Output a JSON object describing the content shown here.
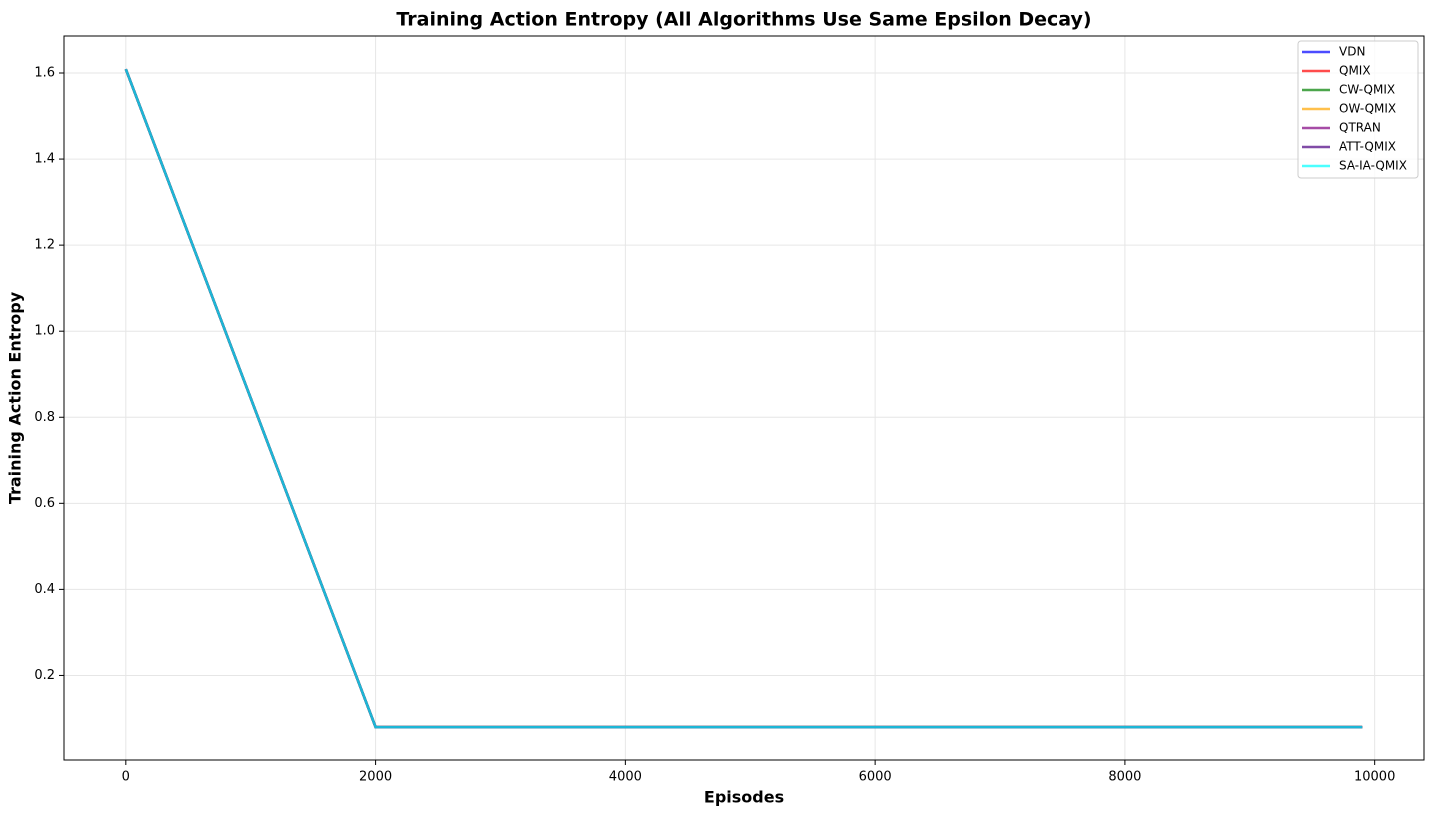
{
  "chart_data": {
    "type": "line",
    "title": "Training Action Entropy (All Algorithms Use Same Epsilon Decay)",
    "x_label": "Episodes",
    "y_label": "Training Action Entropy",
    "x": [
      0,
      2000,
      9900
    ],
    "series": [
      {
        "name": "VDN",
        "color": "#0000ff",
        "values": [
          1.609,
          0.08,
          0.08
        ]
      },
      {
        "name": "QMIX",
        "color": "#ff0000",
        "values": [
          1.609,
          0.08,
          0.08
        ]
      },
      {
        "name": "CW-QMIX",
        "color": "#008000",
        "values": [
          1.609,
          0.08,
          0.08
        ]
      },
      {
        "name": "OW-QMIX",
        "color": "#ffa500",
        "values": [
          1.609,
          0.08,
          0.08
        ]
      },
      {
        "name": "QTRAN",
        "color": "#800080",
        "values": [
          1.609,
          0.08,
          0.08
        ]
      },
      {
        "name": "ATT-QMIX",
        "color": "#4b0082",
        "values": [
          1.609,
          0.08,
          0.08
        ]
      },
      {
        "name": "SA-IA-QMIX",
        "color": "#00ffff",
        "values": [
          1.609,
          0.08,
          0.08
        ]
      }
    ],
    "xlim": [
      -495,
      10395
    ],
    "ylim": [
      0.0035,
      1.686
    ],
    "xticks": [
      0,
      2000,
      4000,
      6000,
      8000,
      10000
    ],
    "yticks": [
      0.2,
      0.4,
      0.6,
      0.8,
      {
        "value": 1,
        "label": "1.0"
      },
      1.2,
      1.4,
      1.6
    ],
    "grid": true,
    "legend": "upper right"
  }
}
